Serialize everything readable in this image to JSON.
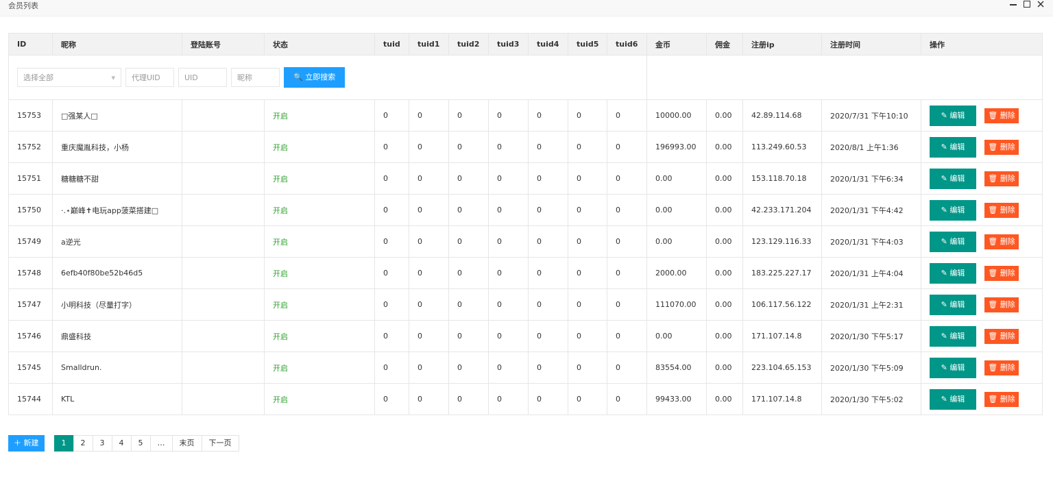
{
  "header": {
    "title": "会员列表"
  },
  "table": {
    "columns": [
      "ID",
      "昵称",
      "登陆账号",
      "状态",
      "tuid",
      "tuid1",
      "tuid2",
      "tuid3",
      "tuid4",
      "tuid5",
      "tuid6",
      "金币",
      "佣金",
      "注册ip",
      "注册时间",
      "操作"
    ],
    "filters": {
      "select": "选择全部",
      "agent_uid": "代理UID",
      "uid": "UID",
      "nickname": "昵称",
      "search": "立即搜索"
    },
    "actions": {
      "edit": "编辑",
      "delete": "删除"
    },
    "rows": [
      {
        "id": "15753",
        "nickname": "□强某人□",
        "status": "开启",
        "tuid": [
          0,
          0,
          0,
          0,
          0,
          0,
          0
        ],
        "gold": "10000.00",
        "commission": "0.00",
        "ip": "42.89.114.68",
        "time": "2020/7/31 下午10:10"
      },
      {
        "id": "15752",
        "nickname": "重庆魔胤科技，小杨",
        "status": "开启",
        "tuid": [
          0,
          0,
          0,
          0,
          0,
          0,
          0
        ],
        "gold": "196993.00",
        "commission": "0.00",
        "ip": "113.249.60.53",
        "time": "2020/8/1 上午1:36"
      },
      {
        "id": "15751",
        "nickname": "糖糖糖不甜",
        "status": "开启",
        "tuid": [
          0,
          0,
          0,
          0,
          0,
          0,
          0
        ],
        "gold": "0.00",
        "commission": "0.00",
        "ip": "153.118.70.18",
        "time": "2020/1/31 下午6:34"
      },
      {
        "id": "15750",
        "nickname": "·.⋆巅峰✝电玩app菠菜搭建□",
        "status": "开启",
        "tuid": [
          0,
          0,
          0,
          0,
          0,
          0,
          0
        ],
        "gold": "0.00",
        "commission": "0.00",
        "ip": "42.233.171.204",
        "time": "2020/1/31 下午4:42"
      },
      {
        "id": "15749",
        "nickname": "a逆光",
        "status": "开启",
        "tuid": [
          0,
          0,
          0,
          0,
          0,
          0,
          0
        ],
        "gold": "0.00",
        "commission": "0.00",
        "ip": "123.129.116.33",
        "time": "2020/1/31 下午4:03"
      },
      {
        "id": "15748",
        "nickname": "6efb40f80be52b46d5",
        "status": "开启",
        "tuid": [
          0,
          0,
          0,
          0,
          0,
          0,
          0
        ],
        "gold": "2000.00",
        "commission": "0.00",
        "ip": "183.225.227.17",
        "time": "2020/1/31 上午4:04"
      },
      {
        "id": "15747",
        "nickname": "小明科技（尽量打字）",
        "status": "开启",
        "tuid": [
          0,
          0,
          0,
          0,
          0,
          0,
          0
        ],
        "gold": "111070.00",
        "commission": "0.00",
        "ip": "106.117.56.122",
        "time": "2020/1/31 上午2:31"
      },
      {
        "id": "15746",
        "nickname": "鼎盛科技",
        "status": "开启",
        "tuid": [
          0,
          0,
          0,
          0,
          0,
          0,
          0
        ],
        "gold": "0.00",
        "commission": "0.00",
        "ip": "171.107.14.8",
        "time": "2020/1/30 下午5:17"
      },
      {
        "id": "15745",
        "nickname": "Smalldrun.",
        "status": "开启",
        "tuid": [
          0,
          0,
          0,
          0,
          0,
          0,
          0
        ],
        "gold": "83554.00",
        "commission": "0.00",
        "ip": "223.104.65.153",
        "time": "2020/1/30 下午5:09"
      },
      {
        "id": "15744",
        "nickname": "KTL",
        "status": "开启",
        "tuid": [
          0,
          0,
          0,
          0,
          0,
          0,
          0
        ],
        "gold": "99433.00",
        "commission": "0.00",
        "ip": "171.107.14.8",
        "time": "2020/1/30 下午5:02"
      }
    ]
  },
  "pagination": {
    "new": "新建",
    "pages": [
      "1",
      "2",
      "3",
      "4",
      "5",
      "…",
      "末页",
      "下一页"
    ]
  }
}
